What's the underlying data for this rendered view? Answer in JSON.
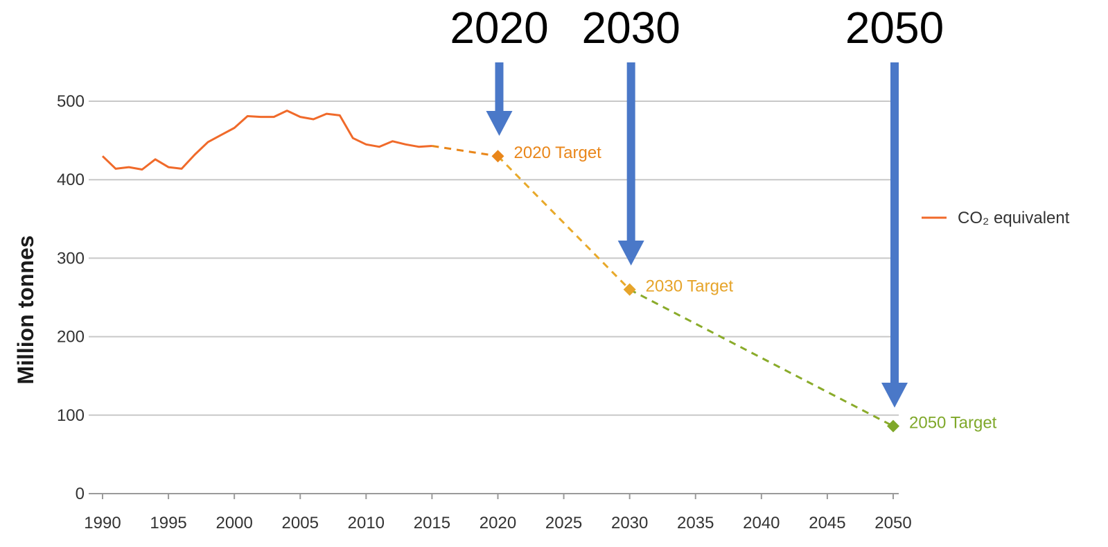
{
  "chart_data": {
    "type": "line",
    "ylabel": "Million tonnes",
    "xlim": [
      1990,
      2050
    ],
    "ylim": [
      0,
      500
    ],
    "x_ticks": [
      "1990",
      "1995",
      "2000",
      "2005",
      "2010",
      "2015",
      "2020",
      "2025",
      "2030",
      "2035",
      "2040",
      "2045",
      "2050"
    ],
    "y_ticks": [
      "0",
      "100",
      "200",
      "300",
      "400",
      "500"
    ],
    "grid": true,
    "legend_position": "right",
    "series": [
      {
        "name": "CO₂ equivalent",
        "color": "#f06a2a",
        "style": "solid",
        "x": [
          1990,
          1991,
          1992,
          1993,
          1994,
          1995,
          1996,
          1997,
          1998,
          1999,
          2000,
          2001,
          2002,
          2003,
          2004,
          2005,
          2006,
          2007,
          2008,
          2009,
          2010,
          2011,
          2012,
          2013,
          2014,
          2015
        ],
        "y": [
          430,
          414,
          416,
          413,
          426,
          416,
          414,
          432,
          448,
          457,
          466,
          481,
          480,
          480,
          488,
          480,
          477,
          484,
          482,
          453,
          445,
          442,
          449,
          445,
          442,
          443
        ]
      }
    ],
    "projections": [
      {
        "x": [
          2015,
          2020
        ],
        "y": [
          443,
          430
        ],
        "color": "#e9861a",
        "style": "dashed"
      },
      {
        "x": [
          2020,
          2030
        ],
        "y": [
          430,
          260
        ],
        "color": "#e8a92a",
        "style": "dashed"
      },
      {
        "x": [
          2030,
          2050
        ],
        "y": [
          260,
          86
        ],
        "color": "#8aab2a",
        "style": "dashed"
      }
    ],
    "targets": [
      {
        "x": 2020,
        "y": 430,
        "label": "2020 Target",
        "color": "#e9861a"
      },
      {
        "x": 2030,
        "y": 260,
        "label": "2030 Target",
        "color": "#e6a42a"
      },
      {
        "x": 2050,
        "y": 86,
        "label": "2050 Target",
        "color": "#7fa82a"
      }
    ],
    "annotations": {
      "year_headings": [
        {
          "year": 2020,
          "text": "2020"
        },
        {
          "year": 2030,
          "text": "2030"
        },
        {
          "year": 2050,
          "text": "2050"
        }
      ],
      "arrow_color": "#4a78c8"
    }
  }
}
